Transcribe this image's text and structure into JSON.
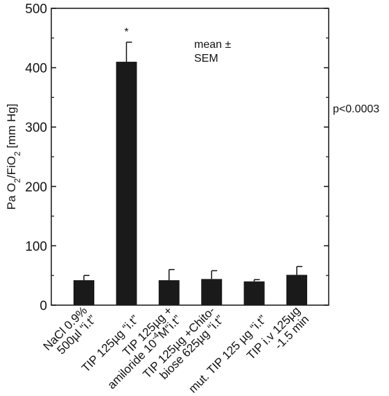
{
  "chart_data": {
    "type": "bar",
    "title": "",
    "xlabel": "",
    "ylabel": {
      "text": "PaO2/FiO2 [mm Hg]",
      "parts": [
        {
          "text": "Pa O"
        },
        {
          "text": "2",
          "sub": true
        },
        {
          "text": "/FiO"
        },
        {
          "text": "2",
          "sub": true
        },
        {
          "text": " [mm Hg]"
        }
      ]
    },
    "ylim": [
      0,
      500
    ],
    "yticks": [
      0,
      100,
      200,
      300,
      400,
      500
    ],
    "categories": [
      {
        "text": "NaCl 0.9% 500µl “i.t”",
        "lines": [
          [
            {
              "text": "NaCl 0.9%"
            }
          ],
          [
            {
              "text": "500µl “i.t”"
            }
          ]
        ]
      },
      {
        "text": "TIP 125µg “i.t”",
        "lines": [
          [
            {
              "text": "TIP 125µg “i.t”"
            }
          ]
        ]
      },
      {
        "text": "TIP 125µg + amiloride 10-4M “i.t”",
        "lines": [
          [
            {
              "text": "TIP 125µg +"
            }
          ],
          [
            {
              "text": "amiloride 10"
            },
            {
              "text": "-4",
              "sup": true
            },
            {
              "text": "M“i.t”"
            }
          ]
        ]
      },
      {
        "text": "TIP 125µg +Chito-biose 625µg “i.t”",
        "lines": [
          [
            {
              "text": "TIP 125µg +Chito-"
            }
          ],
          [
            {
              "text": "biose 625µg “i.t”"
            }
          ]
        ]
      },
      {
        "text": "mut. TIP 125 µg “i.t”",
        "lines": [
          [
            {
              "text": "mut. TIP 125 µg “i.t”"
            }
          ]
        ]
      },
      {
        "text": "TIP i.v 125µg -1.5 min",
        "lines": [
          [
            {
              "text": "TIP i.v 125µg"
            }
          ],
          [
            {
              "text": "-1.5 min"
            }
          ]
        ]
      }
    ],
    "series": [
      {
        "values": [
          42,
          410,
          42,
          44,
          40,
          51
        ],
        "sem": [
          8,
          33,
          18,
          14,
          3,
          14
        ]
      }
    ],
    "significance": {
      "category_index": 1,
      "marker": "*"
    },
    "annotations": [
      {
        "lines": [
          "mean ±",
          "SEM"
        ]
      },
      {
        "lines": [
          "p<0.0003"
        ]
      }
    ],
    "legend": "none",
    "grid": false,
    "colors": {
      "bar": "#1a1a1a",
      "axis": "#111111"
    }
  }
}
